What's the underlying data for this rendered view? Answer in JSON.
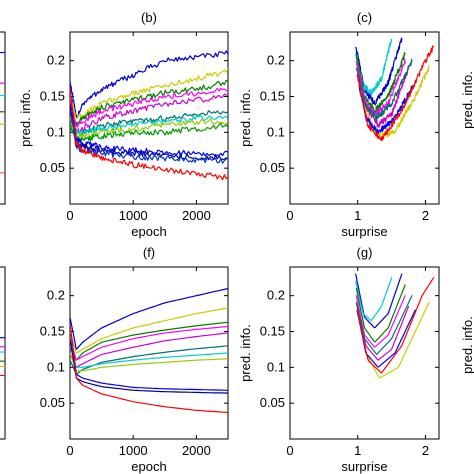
{
  "chart_data": [
    {
      "id": "a",
      "title": "",
      "type": "line",
      "ylabel": "",
      "xlabel": "",
      "partial": "right-edge-only",
      "series": [
        {
          "color": "#0000ff",
          "y": [
            0.21
          ]
        },
        {
          "color": "#ff00ff",
          "y": [
            0.17
          ]
        },
        {
          "color": "#00ccff",
          "y": [
            0.15
          ]
        },
        {
          "color": "#008000",
          "y": [
            0.13
          ]
        },
        {
          "color": "#cccc00",
          "y": [
            0.11
          ]
        },
        {
          "color": "#ff0000",
          "y": [
            0.045
          ]
        }
      ]
    },
    {
      "id": "b",
      "title": "(b)",
      "type": "line",
      "noisy": true,
      "xlabel": "epoch",
      "ylabel": "pred. info.",
      "xlim": [
        0,
        2500
      ],
      "ylim": [
        0,
        0.24
      ],
      "xticks": [
        "0",
        "1000",
        "2000"
      ],
      "yticks": [
        "0.05",
        "0.1",
        "0.15",
        "0.2"
      ],
      "xtick_values": [
        0,
        1000,
        2000
      ],
      "ytick_values": [
        0.05,
        0.1,
        0.15,
        0.2
      ],
      "x": [
        0,
        100,
        200,
        500,
        1000,
        1500,
        2000,
        2500
      ],
      "series": [
        {
          "color": "#0000cc",
          "y": [
            0.17,
            0.12,
            0.14,
            0.16,
            0.18,
            0.2,
            0.205,
            0.21
          ]
        },
        {
          "color": "#cccc00",
          "y": [
            0.15,
            0.12,
            0.125,
            0.14,
            0.155,
            0.165,
            0.175,
            0.185
          ]
        },
        {
          "color": "#008000",
          "y": [
            0.13,
            0.11,
            0.12,
            0.135,
            0.145,
            0.155,
            0.16,
            0.17
          ]
        },
        {
          "color": "#ff00ff",
          "y": [
            0.14,
            0.11,
            0.115,
            0.13,
            0.14,
            0.15,
            0.155,
            0.16
          ]
        },
        {
          "color": "#cc00cc",
          "y": [
            0.12,
            0.1,
            0.105,
            0.12,
            0.13,
            0.14,
            0.145,
            0.15
          ]
        },
        {
          "color": "#007070",
          "y": [
            0.11,
            0.09,
            0.1,
            0.11,
            0.115,
            0.12,
            0.125,
            0.13
          ]
        },
        {
          "color": "#00cccc",
          "y": [
            0.13,
            0.1,
            0.1,
            0.105,
            0.11,
            0.115,
            0.12,
            0.12
          ]
        },
        {
          "color": "#99cc00",
          "y": [
            0.12,
            0.095,
            0.095,
            0.1,
            0.105,
            0.11,
            0.115,
            0.115
          ]
        },
        {
          "color": "#009900",
          "y": [
            0.11,
            0.09,
            0.09,
            0.095,
            0.1,
            0.1,
            0.105,
            0.11
          ]
        },
        {
          "color": "#0000ff",
          "y": [
            0.16,
            0.09,
            0.085,
            0.08,
            0.075,
            0.072,
            0.07,
            0.07
          ]
        },
        {
          "color": "#000099",
          "y": [
            0.14,
            0.085,
            0.08,
            0.075,
            0.07,
            0.068,
            0.066,
            0.065
          ]
        },
        {
          "color": "#0033cc",
          "y": [
            0.13,
            0.08,
            0.075,
            0.07,
            0.066,
            0.064,
            0.062,
            0.06
          ]
        },
        {
          "color": "#ff0000",
          "y": [
            0.16,
            0.085,
            0.075,
            0.065,
            0.055,
            0.048,
            0.042,
            0.037
          ]
        }
      ]
    },
    {
      "id": "c",
      "title": "(c)",
      "type": "line",
      "noisy": true,
      "xlabel": "surprise",
      "ylabel": "pred. info.",
      "xlim": [
        0,
        2.2
      ],
      "ylim": [
        0,
        0.24
      ],
      "xticks": [
        "0",
        "1",
        "2"
      ],
      "yticks": [
        "0.05",
        "0.1",
        "0.15",
        "0.2"
      ],
      "xtick_values": [
        0,
        1,
        2
      ],
      "ytick_values": [
        0.05,
        0.1,
        0.15,
        0.2
      ],
      "series": [
        {
          "color": "#0000cc",
          "x": [
            0.97,
            1.1,
            1.25,
            1.45,
            1.65
          ],
          "y": [
            0.22,
            0.16,
            0.14,
            0.17,
            0.23
          ]
        },
        {
          "color": "#00cccc",
          "x": [
            0.97,
            1.08,
            1.2,
            1.35,
            1.5
          ],
          "y": [
            0.21,
            0.165,
            0.155,
            0.175,
            0.23
          ]
        },
        {
          "color": "#cccc00",
          "x": [
            0.98,
            1.12,
            1.3,
            1.55,
            1.85,
            2.05
          ],
          "y": [
            0.2,
            0.13,
            0.095,
            0.1,
            0.15,
            0.19
          ]
        },
        {
          "color": "#008000",
          "x": [
            0.98,
            1.1,
            1.25,
            1.45,
            1.7
          ],
          "y": [
            0.21,
            0.15,
            0.13,
            0.15,
            0.21
          ]
        },
        {
          "color": "#ff00ff",
          "x": [
            0.98,
            1.1,
            1.25,
            1.45,
            1.7
          ],
          "y": [
            0.2,
            0.145,
            0.125,
            0.14,
            0.2
          ]
        },
        {
          "color": "#cc00cc",
          "x": [
            0.98,
            1.12,
            1.3,
            1.5,
            1.75
          ],
          "y": [
            0.19,
            0.135,
            0.11,
            0.125,
            0.19
          ]
        },
        {
          "color": "#007070",
          "x": [
            0.98,
            1.1,
            1.28,
            1.5,
            1.8
          ],
          "y": [
            0.19,
            0.14,
            0.12,
            0.14,
            0.2
          ]
        },
        {
          "color": "#0000ff",
          "x": [
            0.99,
            1.12,
            1.3,
            1.55,
            1.85
          ],
          "y": [
            0.18,
            0.12,
            0.1,
            0.12,
            0.17
          ]
        },
        {
          "color": "#ff0000",
          "x": [
            0.99,
            1.15,
            1.35,
            1.65,
            1.95,
            2.12
          ],
          "y": [
            0.18,
            0.11,
            0.09,
            0.13,
            0.19,
            0.22
          ]
        }
      ]
    },
    {
      "id": "e",
      "title": "",
      "type": "line",
      "ylabel": "",
      "xlabel": "",
      "partial": "right-edge-only",
      "series": [
        {
          "color": "#0000ff",
          "y": [
            0.14
          ]
        },
        {
          "color": "#ff00ff",
          "y": [
            0.13
          ]
        },
        {
          "color": "#00ccff",
          "y": [
            0.12
          ]
        },
        {
          "color": "#008000",
          "y": [
            0.11
          ]
        },
        {
          "color": "#cccc00",
          "y": [
            0.1
          ]
        },
        {
          "color": "#ff0000",
          "y": [
            0.09
          ]
        }
      ]
    },
    {
      "id": "f",
      "title": "(f)",
      "type": "line",
      "xlabel": "epoch",
      "ylabel": "",
      "xlim": [
        0,
        2500
      ],
      "ylim": [
        0,
        0.24
      ],
      "xticks": [
        "0",
        "1000",
        "2000"
      ],
      "yticks": [
        "0.05",
        "0.1",
        "0.15",
        "0.2"
      ],
      "xtick_values": [
        0,
        1000,
        2000
      ],
      "ytick_values": [
        0.05,
        0.1,
        0.15,
        0.2
      ],
      "x": [
        0,
        100,
        200,
        500,
        1000,
        1500,
        2000,
        2500
      ],
      "series": [
        {
          "color": "#0000cc",
          "y": [
            0.17,
            0.125,
            0.135,
            0.155,
            0.175,
            0.19,
            0.2,
            0.21
          ]
        },
        {
          "color": "#cccc00",
          "y": [
            0.15,
            0.12,
            0.125,
            0.14,
            0.155,
            0.165,
            0.175,
            0.183
          ]
        },
        {
          "color": "#008000",
          "y": [
            0.13,
            0.11,
            0.12,
            0.135,
            0.145,
            0.152,
            0.158,
            0.163
          ]
        },
        {
          "color": "#ff00ff",
          "y": [
            0.14,
            0.11,
            0.115,
            0.128,
            0.14,
            0.148,
            0.153,
            0.157
          ]
        },
        {
          "color": "#cc00cc",
          "y": [
            0.12,
            0.1,
            0.105,
            0.118,
            0.128,
            0.137,
            0.143,
            0.148
          ]
        },
        {
          "color": "#007070",
          "y": [
            0.11,
            0.09,
            0.097,
            0.107,
            0.115,
            0.121,
            0.126,
            0.13
          ]
        },
        {
          "color": "#00cccc",
          "y": [
            0.13,
            0.1,
            0.1,
            0.105,
            0.11,
            0.114,
            0.117,
            0.12
          ]
        },
        {
          "color": "#99cc00",
          "y": [
            0.12,
            0.095,
            0.095,
            0.1,
            0.104,
            0.107,
            0.11,
            0.112
          ]
        },
        {
          "color": "#0000ff",
          "y": [
            0.16,
            0.09,
            0.085,
            0.078,
            0.072,
            0.07,
            0.069,
            0.068
          ]
        },
        {
          "color": "#000099",
          "y": [
            0.14,
            0.085,
            0.08,
            0.073,
            0.068,
            0.066,
            0.065,
            0.064
          ]
        },
        {
          "color": "#ff0000",
          "y": [
            0.16,
            0.085,
            0.075,
            0.063,
            0.052,
            0.045,
            0.04,
            0.037
          ]
        }
      ]
    },
    {
      "id": "g",
      "title": "(g)",
      "type": "line",
      "xlabel": "surprise",
      "ylabel": "pred. info.",
      "xlim": [
        0,
        2.2
      ],
      "ylim": [
        0,
        0.24
      ],
      "xticks": [
        "0",
        "1",
        "2"
      ],
      "yticks": [
        "0.05",
        "0.1",
        "0.15",
        "0.2"
      ],
      "xtick_values": [
        0,
        1,
        2
      ],
      "ytick_values": [
        0.05,
        0.1,
        0.15,
        0.2
      ],
      "series": [
        {
          "color": "#0000cc",
          "x": [
            0.97,
            1.1,
            1.25,
            1.45,
            1.65
          ],
          "y": [
            0.23,
            0.17,
            0.155,
            0.175,
            0.23
          ]
        },
        {
          "color": "#00cccc",
          "x": [
            0.97,
            1.08,
            1.2,
            1.35,
            1.5
          ],
          "y": [
            0.22,
            0.175,
            0.165,
            0.185,
            0.225
          ]
        },
        {
          "color": "#cccc00",
          "x": [
            0.98,
            1.12,
            1.32,
            1.6,
            1.9,
            2.05
          ],
          "y": [
            0.2,
            0.12,
            0.085,
            0.1,
            0.16,
            0.19
          ]
        },
        {
          "color": "#008000",
          "x": [
            0.98,
            1.1,
            1.25,
            1.45,
            1.7
          ],
          "y": [
            0.21,
            0.155,
            0.135,
            0.155,
            0.215
          ]
        },
        {
          "color": "#ff00ff",
          "x": [
            0.98,
            1.1,
            1.25,
            1.45,
            1.7
          ],
          "y": [
            0.2,
            0.145,
            0.128,
            0.145,
            0.2
          ]
        },
        {
          "color": "#cc00cc",
          "x": [
            0.98,
            1.12,
            1.3,
            1.5,
            1.75
          ],
          "y": [
            0.19,
            0.13,
            0.11,
            0.125,
            0.185
          ]
        },
        {
          "color": "#007070",
          "x": [
            0.98,
            1.1,
            1.28,
            1.5,
            1.8
          ],
          "y": [
            0.19,
            0.14,
            0.118,
            0.14,
            0.2
          ]
        },
        {
          "color": "#0000ff",
          "x": [
            0.99,
            1.12,
            1.3,
            1.55,
            1.85
          ],
          "y": [
            0.18,
            0.12,
            0.1,
            0.12,
            0.18
          ]
        },
        {
          "color": "#ff0000",
          "x": [
            0.99,
            1.15,
            1.35,
            1.65,
            1.95,
            2.12
          ],
          "y": [
            0.18,
            0.11,
            0.092,
            0.13,
            0.2,
            0.225
          ]
        }
      ]
    }
  ]
}
